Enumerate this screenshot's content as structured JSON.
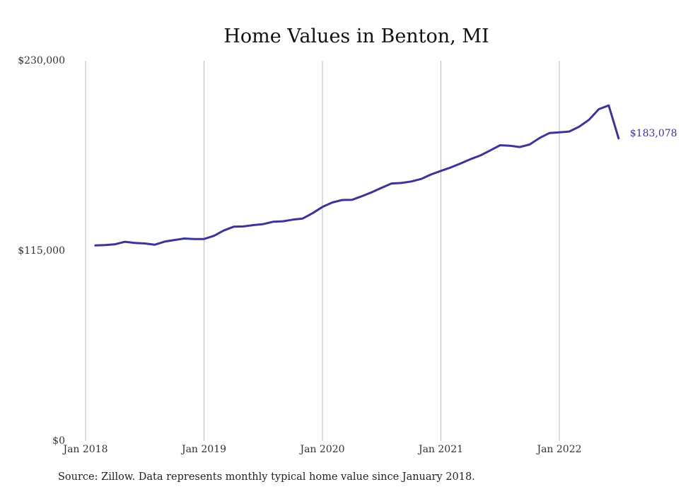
{
  "chart_data": {
    "type": "line",
    "title": "Home Values in Benton, MI",
    "xlabel": "",
    "ylabel": "",
    "ylim": [
      0,
      230000
    ],
    "y_ticks": [
      "$230,000",
      "$115,000",
      "$0"
    ],
    "y_tick_values": [
      230000,
      115000,
      0
    ],
    "x_ticks": [
      "Jan 2018",
      "Jan 2019",
      "Jan 2020",
      "Jan 2021",
      "Jan 2022"
    ],
    "x_tick_values": [
      "2018-01",
      "2019-01",
      "2020-01",
      "2021-01",
      "2022-01"
    ],
    "x_range": [
      "2018-01",
      "2022-07"
    ],
    "grid": "vertical lines at x ticks",
    "line_color": "#3a3597",
    "series": [
      {
        "x": [
          "2018-02",
          "2018-03",
          "2018-04",
          "2018-05",
          "2018-06",
          "2018-07",
          "2018-08",
          "2018-09",
          "2018-10",
          "2018-11",
          "2018-12",
          "2019-01",
          "2019-02",
          "2019-03",
          "2019-04",
          "2019-05",
          "2019-06",
          "2019-07",
          "2019-08",
          "2019-09",
          "2019-10",
          "2019-11",
          "2019-12",
          "2020-01",
          "2020-02",
          "2020-03",
          "2020-04",
          "2020-05",
          "2020-06",
          "2020-07",
          "2020-08",
          "2020-09",
          "2020-10",
          "2020-11",
          "2020-12",
          "2021-01",
          "2021-02",
          "2021-03",
          "2021-04",
          "2021-05",
          "2021-06",
          "2021-07",
          "2021-08",
          "2021-09",
          "2021-10",
          "2021-11",
          "2021-12",
          "2022-01",
          "2022-02",
          "2022-03",
          "2022-04",
          "2022-05",
          "2022-06",
          "2022-07"
        ],
        "values": [
          118300,
          118500,
          119000,
          120500,
          119800,
          119500,
          118700,
          120600,
          121600,
          122500,
          122200,
          122200,
          124100,
          127300,
          129600,
          129800,
          130600,
          131200,
          132600,
          132900,
          133900,
          134600,
          137800,
          141600,
          144300,
          145800,
          145900,
          148100,
          150500,
          153200,
          155800,
          156100,
          157000,
          158500,
          161200,
          163400,
          165500,
          167900,
          170500,
          172700,
          175800,
          178900,
          178600,
          177800,
          179400,
          183300,
          186300,
          186700,
          187200,
          190100,
          194300,
          200700,
          203000,
          183078
        ],
        "end_label": "$183,078"
      }
    ],
    "source": "Source: Zillow. Data represents monthly typical home value since January 2018."
  }
}
